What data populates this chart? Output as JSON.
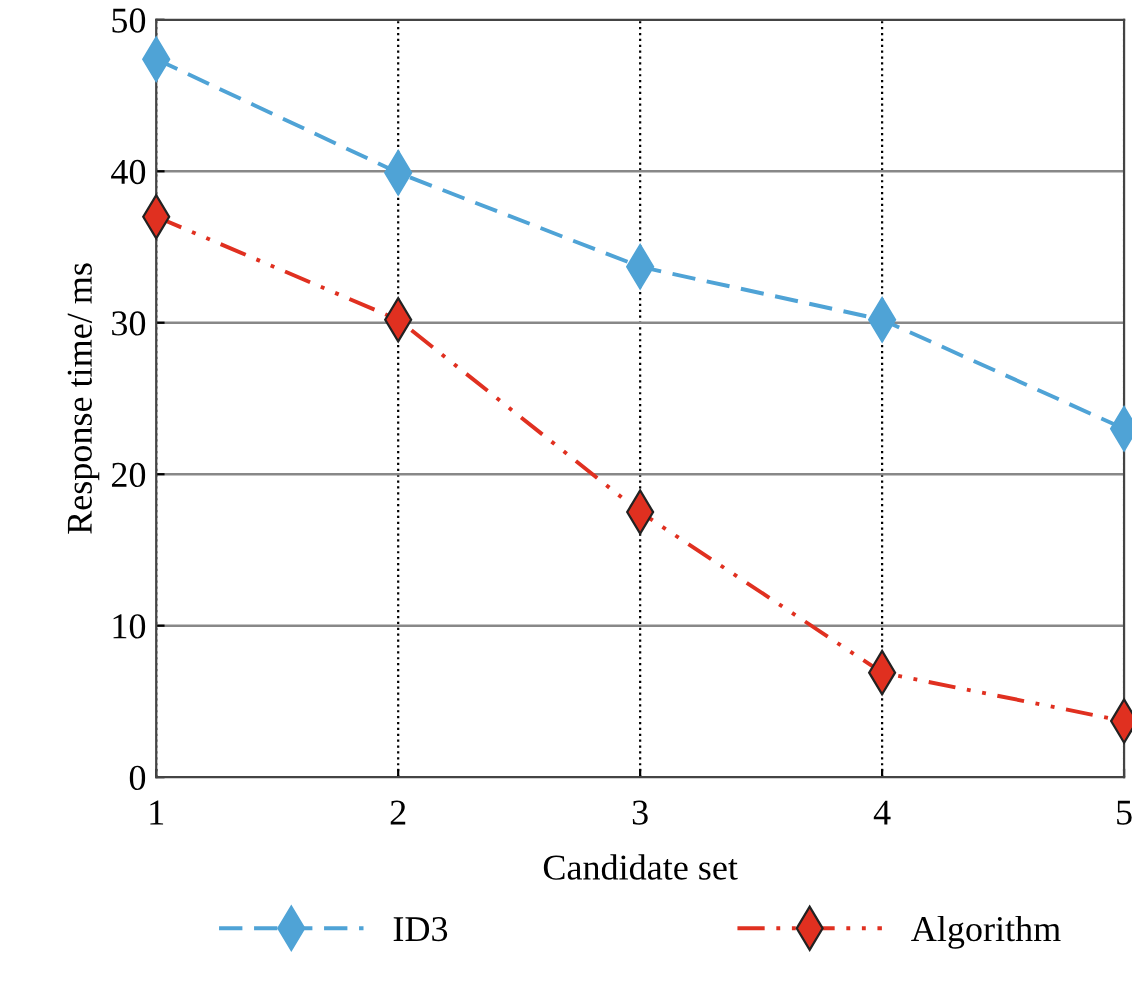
{
  "chart_data": {
    "type": "line",
    "xlabel": "Candidate set",
    "ylabel": "Response time/ ms",
    "x": [
      1,
      2,
      3,
      4,
      5
    ],
    "xlim": [
      1,
      5
    ],
    "xticks": [
      1,
      2,
      3,
      4,
      5
    ],
    "ylim": [
      0,
      50
    ],
    "yticks": [
      0,
      10,
      20,
      30,
      40,
      50
    ],
    "grid": true,
    "legend": "bottom",
    "marker": "diamond",
    "series": [
      {
        "name": "ID3",
        "color": "#4fa3d6",
        "line_style": "dashed",
        "values": [
          47.4,
          39.9,
          33.7,
          30.2,
          23.0
        ]
      },
      {
        "name": "Algorithm",
        "color": "#e03020",
        "line_style": "dashdotdot",
        "values": [
          37.0,
          30.2,
          17.5,
          6.9,
          3.7
        ]
      }
    ]
  }
}
